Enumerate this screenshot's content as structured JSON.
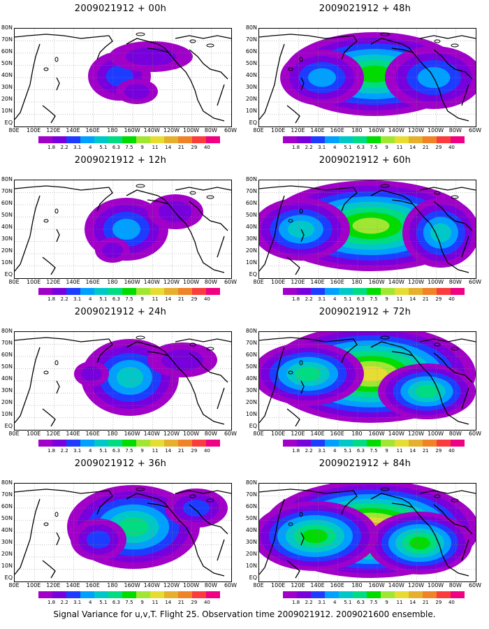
{
  "panels": [
    {
      "title": "2009021912 + 00h",
      "level": 0
    },
    {
      "title": "2009021912 + 12h",
      "level": 1
    },
    {
      "title": "2009021912 + 24h",
      "level": 2
    },
    {
      "title": "2009021912 + 36h",
      "level": 3
    },
    {
      "title": "2009021912 + 48h",
      "level": 4
    },
    {
      "title": "2009021912 + 60h",
      "level": 5
    },
    {
      "title": "2009021912 + 72h",
      "level": 6
    },
    {
      "title": "2009021912 + 84h",
      "level": 7
    }
  ],
  "lat_labels": [
    "80N",
    "70N",
    "60N",
    "50N",
    "40N",
    "30N",
    "20N",
    "10N",
    "EQ"
  ],
  "lon_labels": [
    "80E",
    "100E",
    "120E",
    "140E",
    "160E",
    "180",
    "160W",
    "140W",
    "120W",
    "100W",
    "80W",
    "60W"
  ],
  "colorbar": {
    "labels": [
      "1.8",
      "2.2",
      "3.1",
      "4",
      "5.1",
      "6.3",
      "7.5",
      "9",
      "11",
      "14",
      "21",
      "29",
      "40"
    ],
    "colors": [
      "#a000c8",
      "#7800dc",
      "#1e3cff",
      "#00a0ff",
      "#00c8c8",
      "#00dc82",
      "#00dc00",
      "#a0e632",
      "#e6dc32",
      "#e6af2d",
      "#f08228",
      "#fa3c3c",
      "#f00082"
    ]
  },
  "caption": "Signal Variance for u,v,T. Flight 25. Observation time 2009021912. 2009021600 ensemble."
}
